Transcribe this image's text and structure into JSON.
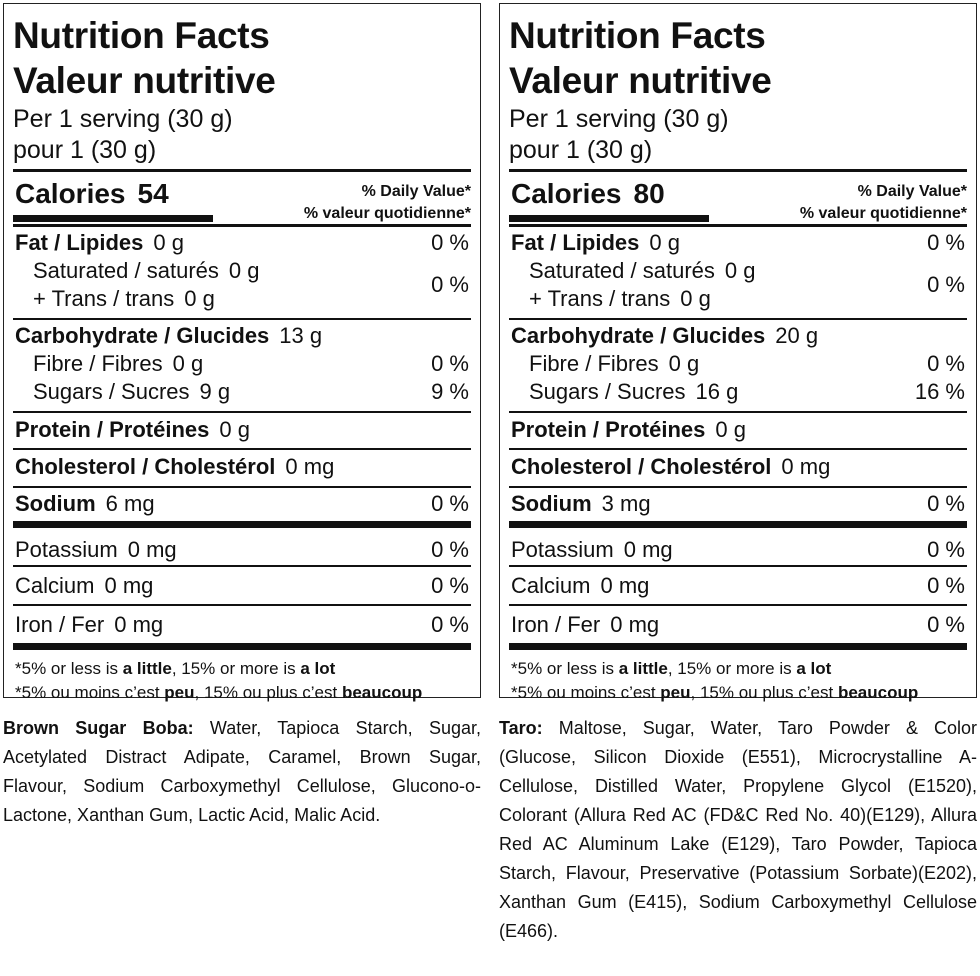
{
  "labels": [
    {
      "title_en": "Nutrition Facts",
      "title_fr": "Valeur nutritive",
      "serving_en": "Per  1 serving (30 g)",
      "serving_fr": "pour 1  (30 g)",
      "calories_label": "Calories",
      "calories_value": "54",
      "dv_en": "% Daily Value*",
      "dv_fr": "% valeur quotidienne*",
      "fat": {
        "label": "Fat / Lipides",
        "amount": "0 g",
        "dv": "0 %"
      },
      "saturated": {
        "label": "Saturated / saturés",
        "amount": "0 g",
        "dv": "0 %"
      },
      "trans": {
        "label": "+ Trans / trans",
        "amount": "0 g"
      },
      "carb": {
        "label": "Carbohydrate / Glucides",
        "amount": "13 g"
      },
      "fibre": {
        "label": "Fibre / Fibres",
        "amount": "0 g",
        "dv": "0 %"
      },
      "sugars": {
        "label": "Sugars / Sucres",
        "amount": "9 g",
        "dv": "9 %"
      },
      "protein": {
        "label": "Protein / Protéines",
        "amount": "0 g"
      },
      "cholesterol": {
        "label": "Cholesterol / Cholestérol",
        "amount": "0 mg"
      },
      "sodium": {
        "label": "Sodium",
        "amount": "6 mg",
        "dv": "0 %"
      },
      "potassium": {
        "label": "Potassium",
        "amount": "0 mg",
        "dv": "0 %"
      },
      "calcium": {
        "label": "Calcium",
        "amount": "0 mg",
        "dv": "0 %"
      },
      "iron": {
        "label": "Iron / Fer",
        "amount": "0 mg",
        "dv": "0 %"
      },
      "foot_en": {
        "a": "*5% or less is ",
        "b": "a little",
        "c": ", 15% or more is ",
        "d": "a lot"
      },
      "foot_fr": {
        "a": "*5% ou moins c’est ",
        "b": "peu",
        "c": ", 15% ou plus c’est ",
        "d": "beaucoup"
      }
    },
    {
      "title_en": "Nutrition Facts",
      "title_fr": "Valeur nutritive",
      "serving_en": "Per  1 serving (30 g)",
      "serving_fr": "pour 1  (30 g)",
      "calories_label": "Calories",
      "calories_value": "80",
      "dv_en": "% Daily Value*",
      "dv_fr": "% valeur quotidienne*",
      "fat": {
        "label": "Fat / Lipides",
        "amount": "0 g",
        "dv": "0 %"
      },
      "saturated": {
        "label": "Saturated / saturés",
        "amount": "0 g",
        "dv": "0 %"
      },
      "trans": {
        "label": "+ Trans / trans",
        "amount": "0 g"
      },
      "carb": {
        "label": "Carbohydrate / Glucides",
        "amount": "20 g"
      },
      "fibre": {
        "label": "Fibre / Fibres",
        "amount": "0 g",
        "dv": "0 %"
      },
      "sugars": {
        "label": "Sugars / Sucres",
        "amount": "16 g",
        "dv": "16 %"
      },
      "protein": {
        "label": "Protein / Protéines",
        "amount": "0 g"
      },
      "cholesterol": {
        "label": "Cholesterol / Cholestérol",
        "amount": "0 mg"
      },
      "sodium": {
        "label": "Sodium",
        "amount": "3 mg",
        "dv": "0 %"
      },
      "potassium": {
        "label": "Potassium",
        "amount": "0 mg",
        "dv": "0 %"
      },
      "calcium": {
        "label": "Calcium",
        "amount": "0 mg",
        "dv": "0 %"
      },
      "iron": {
        "label": "Iron / Fer",
        "amount": "0 mg",
        "dv": "0 %"
      },
      "foot_en": {
        "a": "*5% or less is ",
        "b": "a little",
        "c": ", 15% or more is ",
        "d": "a lot"
      },
      "foot_fr": {
        "a": "*5% ou moins c’est ",
        "b": "peu",
        "c": ", 15% ou plus c’est ",
        "d": "beaucoup"
      }
    }
  ],
  "ingredients": [
    {
      "name": "Brown Sugar Boba:",
      "text": " Water, Tapioca Starch, Sugar, Acetylated Distract Adipate, Caramel, Brown Sugar, Flavour, Sodium Carboxymethyl Cellulose, Glucono-o-Lactone, Xanthan Gum, Lactic Acid, Malic Acid."
    },
    {
      "name": "Taro:",
      "text": " Maltose, Sugar, Water, Taro Powder & Color (Glucose, Silicon Dioxide (E551), Microcrystalline A-Cellulose, Distilled Water, Propylene Glycol (E1520), Colorant (Allura Red AC (FD&C Red No. 40)(E129), Allura Red AC Aluminum Lake (E129), Taro Powder, Tapioca Starch, Flavour, Preservative (Potassium Sorbate)(E202), Xanthan Gum (E415), Sodium Carboxymethyl Cellulose (E466)."
    }
  ]
}
